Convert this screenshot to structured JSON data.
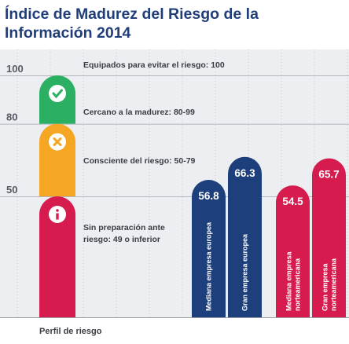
{
  "chart_data": {
    "type": "bar",
    "title": "Índice de Madurez del Riesgo de la Información 2014",
    "xlabel": "Perfil de riesgo",
    "ylabel": "",
    "ylim": [
      0,
      100
    ],
    "yticks": [
      100,
      80,
      50
    ],
    "grid": true,
    "profile_bands": [
      {
        "label": "Equipados para evitar el riesgo: 100",
        "from": 100,
        "to": 100,
        "color": "#ffffff",
        "icon": ""
      },
      {
        "label": "Cercano a la madurez: 80-99",
        "from": 80,
        "to": 100,
        "color": "#2bb063",
        "icon": "check-icon"
      },
      {
        "label": "Consciente del riesgo: 50-79",
        "from": 50,
        "to": 80,
        "color": "#f5a623",
        "icon": "x-icon"
      },
      {
        "label": "Sin preparación ante riesgo: 49 o inferior",
        "from": 0,
        "to": 50,
        "color": "#d61c4e",
        "icon": "info-icon"
      }
    ],
    "categories": [
      "Mediana empresa europea",
      "Gran empresa europea",
      "Mediana empresa norteamericana",
      "Gran empresa norteamericana"
    ],
    "values": [
      56.8,
      66.3,
      54.5,
      65.7
    ],
    "value_labels": [
      "56.8",
      "66.3",
      "54.5",
      "65.7"
    ],
    "colors": [
      "#1d3f7c",
      "#1d3f7c",
      "#d61c4e",
      "#d61c4e"
    ]
  }
}
